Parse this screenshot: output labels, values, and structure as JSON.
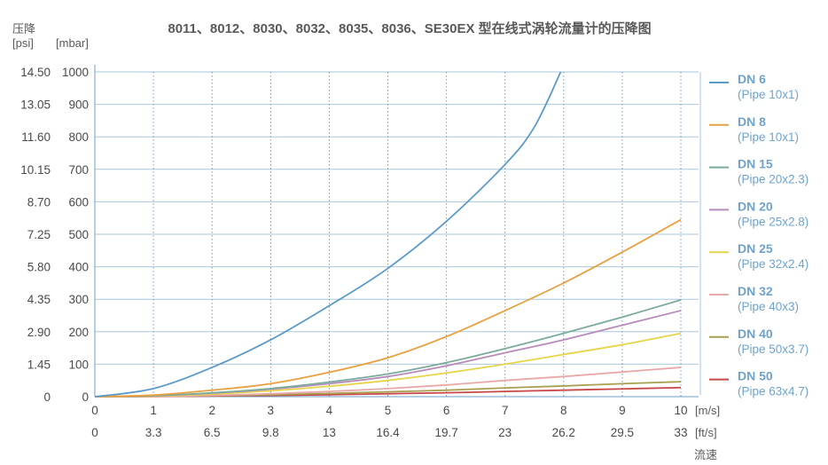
{
  "chart_data": {
    "type": "line",
    "title": "8011、8012、8030、8032、8035、8036、SE30EX 型在线式涡轮流量计的压降图",
    "ylabel": "压降",
    "xlabel": "流速",
    "y_units": [
      "[psi]",
      "[mbar]"
    ],
    "x_units": [
      "[m/s]",
      "[ft/s]"
    ],
    "xlim": [
      0,
      10
    ],
    "ylim": [
      0,
      1000
    ],
    "x_ticks_ms": [
      "0",
      "1",
      "2",
      "3",
      "4",
      "5",
      "6",
      "7",
      "8",
      "9",
      "10"
    ],
    "x_ticks_fts": [
      "0",
      "3.3",
      "6.5",
      "9.8",
      "13",
      "16.4",
      "19.7",
      "23",
      "26.2",
      "29.5",
      "33"
    ],
    "y_ticks_mbar": [
      "0",
      "100",
      "200",
      "300",
      "400",
      "500",
      "600",
      "700",
      "800",
      "900",
      "1000"
    ],
    "y_ticks_psi": [
      "0",
      "1.45",
      "2.90",
      "4.35",
      "5.80",
      "7.25",
      "8.70",
      "10.15",
      "11.60",
      "13.05",
      "14.50"
    ],
    "grid": true,
    "legend_position": "right",
    "series": [
      {
        "name": "DN 6",
        "sub": "(Pipe 10x1)",
        "color": "#5b9ac7",
        "x": [
          0,
          1,
          2,
          3,
          4,
          5,
          6,
          7,
          7.5,
          7.95
        ],
        "values": [
          0,
          25,
          90,
          175,
          280,
          395,
          540,
          715,
          830,
          1000
        ]
      },
      {
        "name": "DN 8",
        "sub": "(Pipe 10x1)",
        "color": "#e8a040",
        "x": [
          0,
          1,
          2,
          3,
          4,
          5,
          6,
          7,
          8,
          9,
          10
        ],
        "values": [
          0,
          5,
          20,
          40,
          75,
          120,
          185,
          265,
          350,
          445,
          545
        ]
      },
      {
        "name": "DN 15",
        "sub": "(Pipe 20x2.3)",
        "color": "#7aab9c",
        "x": [
          0,
          1,
          2,
          3,
          4,
          5,
          6,
          7,
          8,
          9,
          10
        ],
        "values": [
          0,
          3,
          12,
          25,
          45,
          70,
          105,
          148,
          195,
          245,
          298
        ]
      },
      {
        "name": "DN 20",
        "sub": "(Pipe 25x2.8)",
        "color": "#b88bba",
        "x": [
          0,
          1,
          2,
          3,
          4,
          5,
          6,
          7,
          8,
          9,
          10
        ],
        "values": [
          0,
          3,
          11,
          23,
          40,
          62,
          95,
          135,
          175,
          220,
          265
        ]
      },
      {
        "name": "DN 25",
        "sub": "(Pipe 32x2.4)",
        "color": "#e6d54a",
        "x": [
          0,
          1,
          2,
          3,
          4,
          5,
          6,
          7,
          8,
          9,
          10
        ],
        "values": [
          0,
          2,
          8,
          18,
          32,
          50,
          73,
          100,
          130,
          160,
          195
        ]
      },
      {
        "name": "DN 32",
        "sub": "(Pipe 40x3)",
        "color": "#e8a8a8",
        "x": [
          0,
          1,
          2,
          3,
          4,
          5,
          6,
          7,
          8,
          9,
          10
        ],
        "values": [
          0,
          1,
          4,
          9,
          16,
          25,
          36,
          50,
          62,
          76,
          90
        ]
      },
      {
        "name": "DN 40",
        "sub": "(Pipe 50x3.7)",
        "color": "#a8a050",
        "x": [
          0,
          1,
          2,
          3,
          4,
          5,
          6,
          7,
          8,
          9,
          10
        ],
        "values": [
          0,
          1,
          3,
          6,
          10,
          15,
          20,
          27,
          33,
          40,
          46
        ]
      },
      {
        "name": "DN 50",
        "sub": "(Pipe 63x4.7)",
        "color": "#c84848",
        "x": [
          0,
          1,
          2,
          3,
          4,
          5,
          6,
          7,
          8,
          9,
          10
        ],
        "values": [
          0,
          0.5,
          2,
          4,
          6,
          9,
          12,
          16,
          20,
          24,
          28
        ]
      }
    ]
  }
}
